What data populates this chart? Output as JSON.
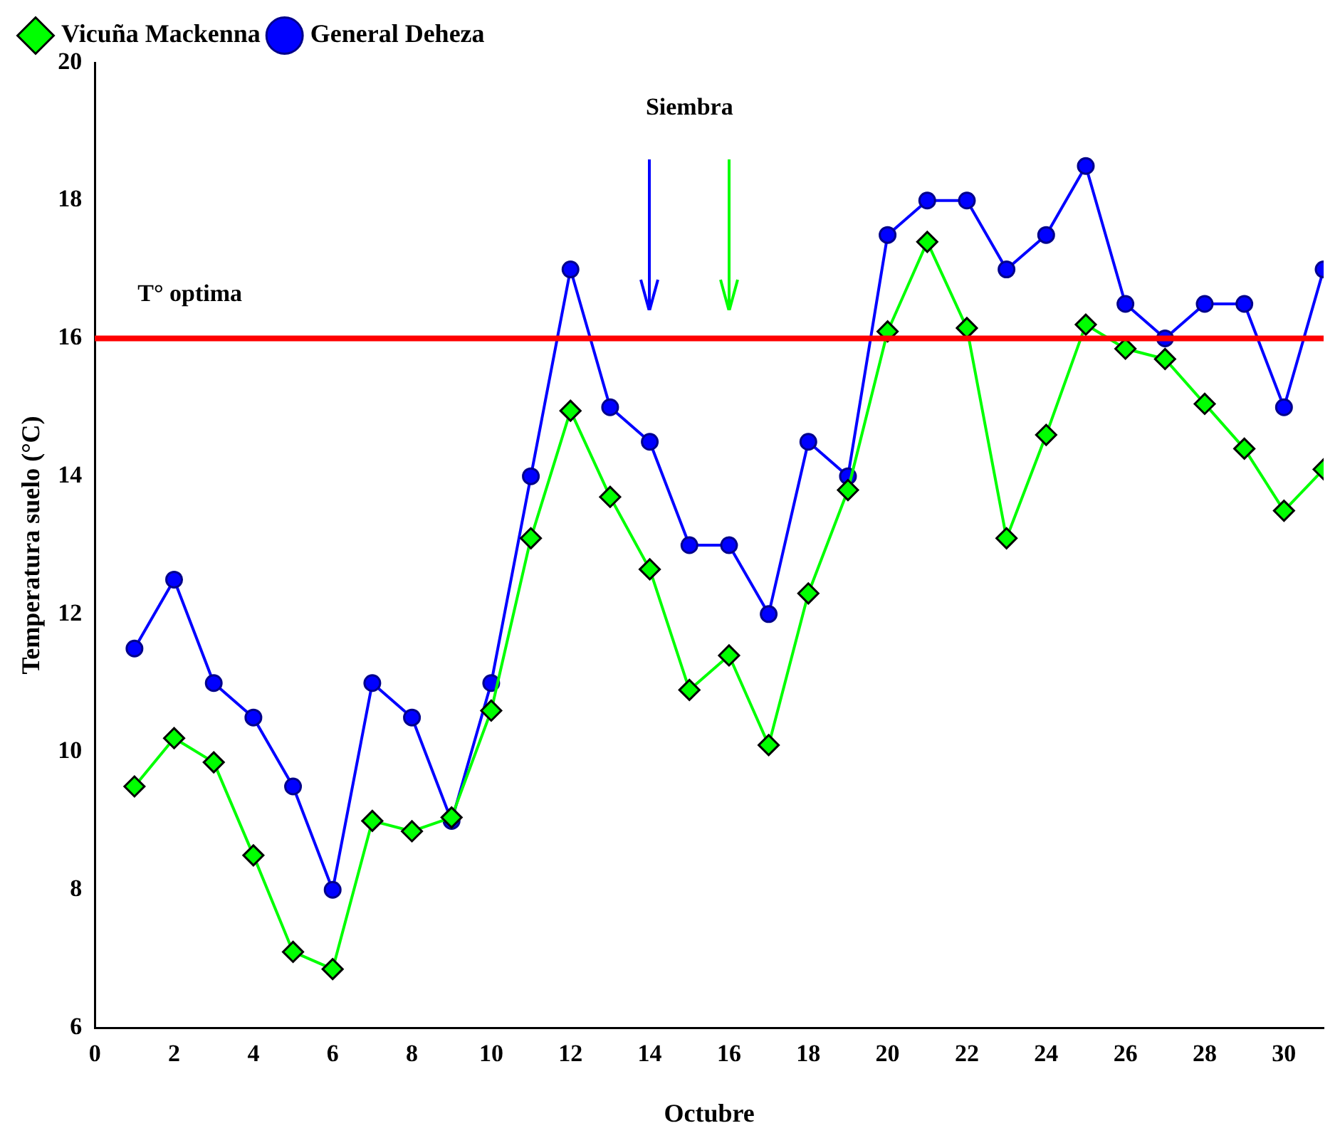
{
  "chart_data": {
    "type": "line",
    "xlabel": "Octubre",
    "ylabel": "Temperatura suelo (°C)",
    "x": [
      1,
      2,
      3,
      4,
      5,
      6,
      7,
      8,
      9,
      10,
      11,
      12,
      13,
      14,
      15,
      16,
      17,
      18,
      19,
      20,
      21,
      22,
      23,
      24,
      25,
      26,
      27,
      28,
      29,
      30,
      31
    ],
    "series": [
      {
        "name": "General Deheza",
        "color": "#0000ff",
        "marker": "circle",
        "values": [
          11.5,
          12.5,
          11,
          10.5,
          9.5,
          8,
          11,
          10.5,
          9,
          11,
          14,
          17,
          15,
          14.5,
          13,
          13,
          12,
          14.5,
          14,
          17.5,
          18,
          18,
          17,
          17.5,
          18.5,
          16.5,
          16,
          16.5,
          16.5,
          15,
          17
        ]
      },
      {
        "name": "Vicuña Mackenna",
        "color": "#00ff00",
        "marker": "diamond",
        "values": [
          9.5,
          10.2,
          9.85,
          8.5,
          7.1,
          6.85,
          9,
          8.85,
          9.05,
          10.6,
          13.1,
          14.95,
          13.7,
          12.65,
          10.9,
          11.4,
          10.1,
          12.3,
          13.8,
          16.1,
          17.4,
          16.15,
          13.1,
          14.6,
          16.2,
          15.85,
          15.7,
          15.05,
          14.4,
          13.5,
          14.1
        ]
      }
    ],
    "xlim": [
      0,
      31
    ],
    "xticks": [
      0,
      2,
      4,
      6,
      8,
      10,
      12,
      14,
      16,
      18,
      20,
      22,
      24,
      26,
      28,
      30
    ],
    "ylim": [
      6,
      20
    ],
    "yticks": [
      6,
      8,
      10,
      12,
      14,
      16,
      18,
      20
    ],
    "ref_lines": [
      {
        "axis": "y",
        "value": 16,
        "label": "T° optima",
        "color": "#ff0000"
      }
    ],
    "annotations": [
      "Siembra"
    ],
    "grid": false,
    "legend": "top left",
    "line_style": "solid"
  }
}
